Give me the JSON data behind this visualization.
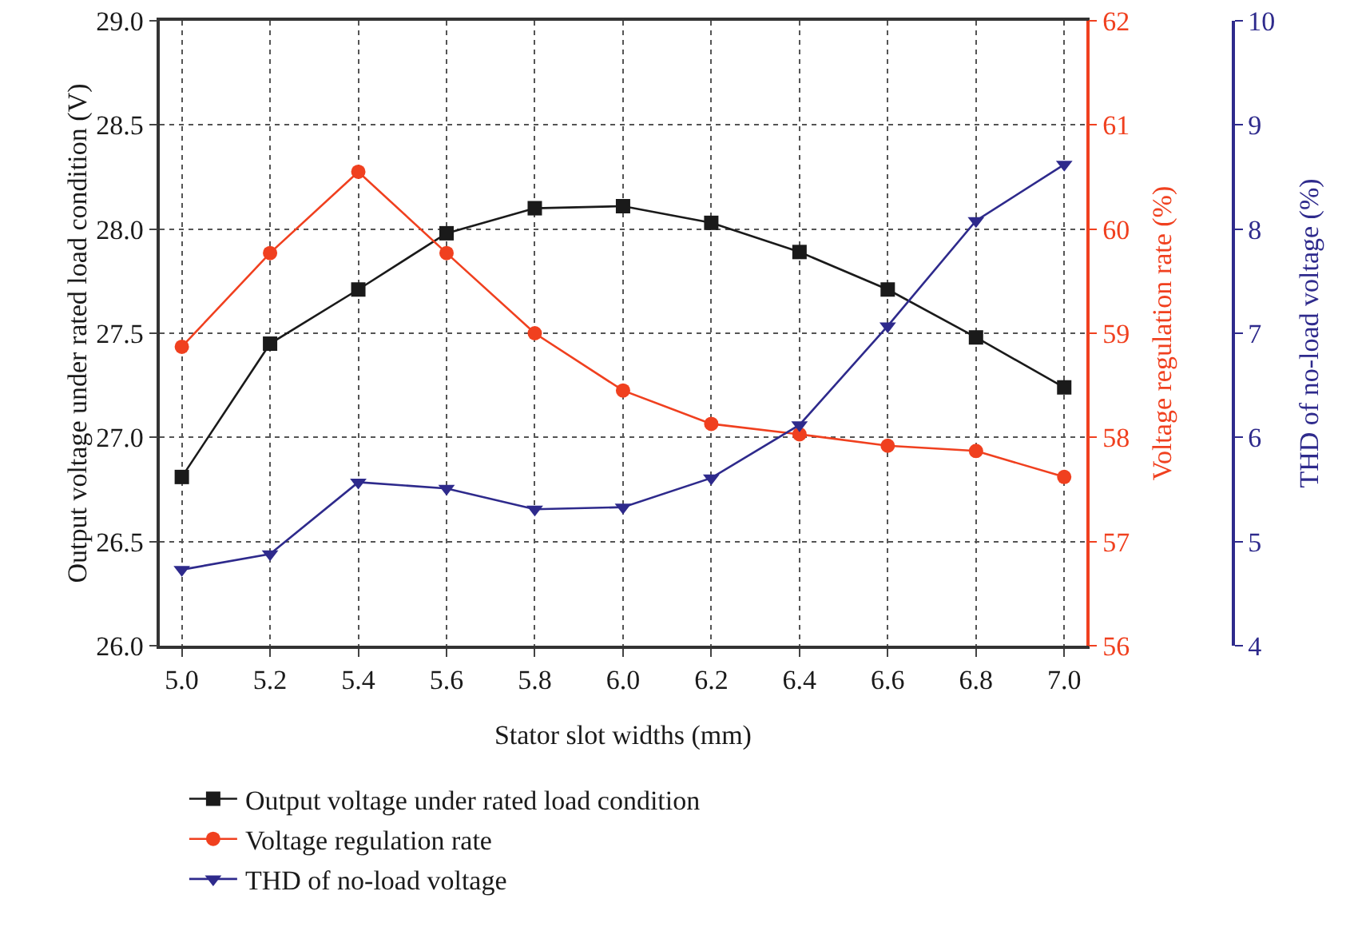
{
  "chart_data": {
    "type": "line",
    "xlabel": "Stator slot widths (mm)",
    "ylabel": "Output voltage under rated load condition (V)",
    "y2label": "Voltage regulation rate (%)",
    "y3label": "THD of no-load voltage (%)",
    "x": [
      5.0,
      5.2,
      5.4,
      5.6,
      5.8,
      6.0,
      6.2,
      6.4,
      6.6,
      6.8,
      7.0
    ],
    "xlim": [
      4.95,
      7.05
    ],
    "xticks": [
      {
        "value": 5.0,
        "label": "5.0"
      },
      {
        "value": 5.2,
        "label": "5.2"
      },
      {
        "value": 5.4,
        "label": "5.4"
      },
      {
        "value": 5.6,
        "label": "5.6"
      },
      {
        "value": 5.8,
        "label": "5.8"
      },
      {
        "value": 6.0,
        "label": "6.0"
      },
      {
        "value": 6.2,
        "label": "6.2"
      },
      {
        "value": 6.4,
        "label": "6.4"
      },
      {
        "value": 6.6,
        "label": "6.6"
      },
      {
        "value": 6.8,
        "label": "6.8"
      },
      {
        "value": 7.0,
        "label": "7.0"
      }
    ],
    "ylim": [
      26,
      29
    ],
    "yticks": [
      {
        "value": 26,
        "label": "26.0"
      },
      {
        "value": 26.5,
        "label": "26.5"
      },
      {
        "value": 27,
        "label": "27.0"
      },
      {
        "value": 27.5,
        "label": "27.5"
      },
      {
        "value": 28,
        "label": "28.0"
      },
      {
        "value": 28.5,
        "label": "28.5"
      },
      {
        "value": 29,
        "label": "29.0"
      }
    ],
    "y2lim": [
      56,
      62
    ],
    "y2ticks": [
      56,
      57,
      58,
      59,
      60,
      61,
      62
    ],
    "y3lim": [
      4,
      10
    ],
    "y3ticks": [
      4,
      5,
      6,
      7,
      8,
      9,
      10
    ],
    "grid": true,
    "legend": "bottom",
    "line_style": "solid",
    "series": [
      {
        "name": "Output voltage under rated load condition",
        "color": "#1a1a1a",
        "marker": "square",
        "values": [
          26.81,
          27.45,
          27.71,
          27.98,
          28.1,
          28.11,
          28.03,
          27.89,
          27.71,
          27.48,
          27.24
        ]
      },
      {
        "name": "Voltage regulation rate",
        "color": "#f0401f",
        "marker": "circle",
        "axis": "y2",
        "values": [
          58.87,
          59.77,
          60.55,
          59.77,
          59.0,
          58.45,
          58.13,
          58.03,
          57.92,
          57.87,
          57.62
        ]
      },
      {
        "name": "THD of no-load voltage",
        "color": "#2e2a8c",
        "marker": "triangle",
        "axis": "y3",
        "values": [
          4.73,
          4.88,
          5.57,
          5.51,
          5.31,
          5.33,
          5.61,
          6.12,
          7.07,
          8.08,
          8.62
        ]
      }
    ]
  }
}
